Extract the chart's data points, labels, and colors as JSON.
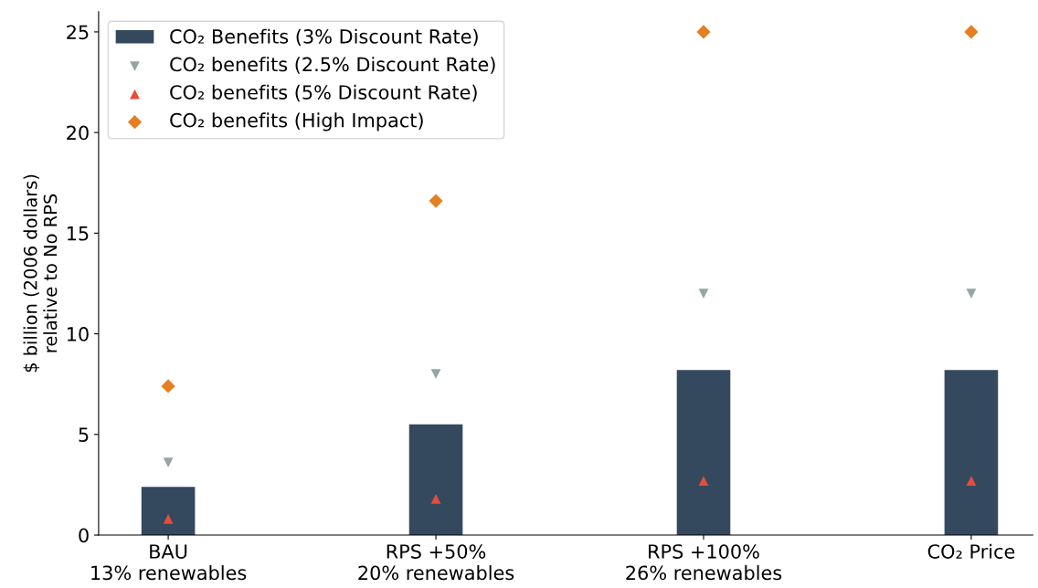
{
  "chart_data": {
    "type": "bar",
    "ylabel": "$ billion (2006 dollars)\nrelative to No RPS",
    "categories": [
      "BAU\n13% renewables",
      "RPS +50%\n20% renewables",
      "RPS +100%\n26% renewables",
      "CO₂ Price"
    ],
    "series": [
      {
        "name": "CO₂ Benefits (3% Discount Rate)",
        "color": "#34495e",
        "values": [
          2.4,
          5.5,
          8.2,
          8.2
        ]
      },
      {
        "name": "CO₂ benefits (2.5% Discount Rate)",
        "type": "scatter",
        "marker": "triangle_down",
        "color": "#95a5a6",
        "x": [
          "BAU\n13% renewables",
          "RPS +50%\n20% renewables",
          "RPS +100%\n26% renewables",
          "CO₂ Price"
        ],
        "values": [
          3.6,
          8.0,
          12.0,
          12.0
        ]
      },
      {
        "name": "CO₂ benefits (5% Discount Rate)",
        "type": "scatter",
        "marker": "triangle",
        "color": "#e74c3c",
        "x": [
          "BAU\n13% renewables",
          "RPS +50%\n20% renewables",
          "RPS +100%\n26% renewables",
          "CO₂ Price"
        ],
        "values": [
          0.8,
          1.8,
          2.7,
          2.7
        ]
      },
      {
        "name": "CO₂ benefits (High Impact)",
        "type": "scatter",
        "marker": "diamond",
        "color": "#e67e22",
        "x": [
          "BAU\n13% renewables",
          "RPS +50%\n20% renewables",
          "RPS +100%\n26% renewables",
          "CO₂ Price"
        ],
        "values": [
          7.4,
          16.6,
          25.0,
          25.0
        ]
      }
    ],
    "ylim": [
      0,
      26
    ],
    "yticks": [
      0,
      5,
      10,
      15,
      20,
      25
    ],
    "grid": false,
    "legend": "top left"
  }
}
